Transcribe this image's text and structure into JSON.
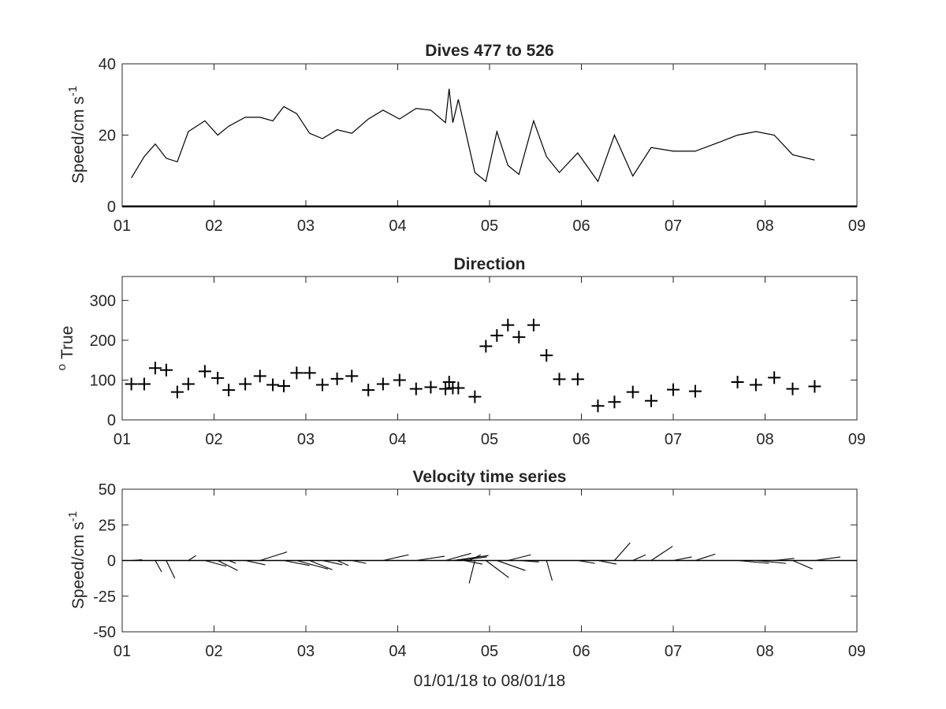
{
  "chart_data": [
    {
      "type": "line",
      "title": "Dives 477 to 526",
      "ylabel": "Speed/cm s",
      "ylabel_superscript": "-1",
      "xlabel": "",
      "xlim": [
        1,
        9
      ],
      "ylim": [
        0,
        40
      ],
      "xtick_labels": [
        "01",
        "02",
        "03",
        "04",
        "05",
        "06",
        "07",
        "08",
        "09"
      ],
      "ytick_labels": [
        "0",
        "20",
        "40"
      ],
      "yticks": [
        0,
        20,
        40
      ],
      "grid": false,
      "series": [
        {
          "x": [
            1.1,
            1.24,
            1.36,
            1.48,
            1.6,
            1.72,
            1.9,
            2.04,
            2.16,
            2.34,
            2.5,
            2.64,
            2.76,
            2.9,
            3.04,
            3.18,
            3.34,
            3.5,
            3.68,
            3.84,
            4.02,
            4.2,
            4.36,
            4.52,
            4.56,
            4.6,
            4.66,
            4.84,
            4.96,
            5.08,
            5.2,
            5.32,
            5.48,
            5.62,
            5.76,
            5.96,
            6.18,
            6.36,
            6.56,
            6.76,
            7.0,
            7.24,
            7.5,
            7.7,
            7.9,
            8.1,
            8.3,
            8.54
          ],
          "y": [
            8,
            14,
            17.5,
            13.5,
            12.5,
            21,
            24,
            20,
            22.5,
            25,
            25,
            24,
            28,
            26,
            20.5,
            19,
            21.5,
            20.5,
            24.5,
            27,
            24.5,
            27.5,
            27,
            23.5,
            33,
            23.5,
            30,
            9.5,
            7,
            21,
            11.5,
            9,
            24,
            14,
            9.5,
            15,
            7,
            20,
            8.5,
            16.5,
            15.5,
            15.5,
            18,
            20,
            21,
            20,
            14.5,
            13
          ]
        }
      ]
    },
    {
      "type": "scatter",
      "title": "Direction",
      "ylabel": "True",
      "ylabel_prefix": "o",
      "xlabel": "",
      "xlim": [
        1,
        9
      ],
      "ylim": [
        0,
        360
      ],
      "xtick_labels": [
        "01",
        "02",
        "03",
        "04",
        "05",
        "06",
        "07",
        "08",
        "09"
      ],
      "ytick_labels": [
        "0",
        "100",
        "200",
        "300"
      ],
      "yticks": [
        0,
        100,
        200,
        300
      ],
      "marker": "+",
      "grid": false,
      "series": [
        {
          "x": [
            1.1,
            1.24,
            1.36,
            1.48,
            1.6,
            1.72,
            1.9,
            2.04,
            2.16,
            2.34,
            2.5,
            2.64,
            2.76,
            2.9,
            3.04,
            3.18,
            3.34,
            3.5,
            3.68,
            3.84,
            4.02,
            4.2,
            4.36,
            4.52,
            4.56,
            4.6,
            4.66,
            4.84,
            4.96,
            5.08,
            5.2,
            5.32,
            5.48,
            5.62,
            5.76,
            5.96,
            6.18,
            6.36,
            6.56,
            6.76,
            7.0,
            7.24,
            7.7,
            7.9,
            8.1,
            8.3,
            8.54
          ],
          "y": [
            90,
            90,
            130,
            125,
            70,
            90,
            122,
            105,
            75,
            90,
            110,
            88,
            85,
            118,
            118,
            88,
            103,
            110,
            75,
            90,
            100,
            78,
            82,
            78,
            95,
            80,
            80,
            58,
            185,
            212,
            238,
            208,
            238,
            162,
            102,
            102,
            35,
            45,
            70,
            48,
            76,
            72,
            95,
            88,
            106,
            78,
            84
          ]
        }
      ]
    },
    {
      "type": "quiver",
      "title": "Velocity time series",
      "ylabel": "Speed/cm s",
      "ylabel_superscript": "-1",
      "xlabel": "01/01/18 to 08/01/18",
      "xlim": [
        1,
        9
      ],
      "ylim": [
        -50,
        50
      ],
      "xtick_labels": [
        "01",
        "02",
        "03",
        "04",
        "05",
        "06",
        "07",
        "08",
        "09"
      ],
      "ytick_labels": [
        "-50",
        "-25",
        "0",
        "25",
        "50"
      ],
      "yticks": [
        -50,
        -25,
        0,
        25,
        50
      ],
      "grid": false,
      "vectors": [
        {
          "x": 1.1,
          "u": 7.5,
          "v": 0.5
        },
        {
          "x": 1.36,
          "u": 4.5,
          "v": -8.0
        },
        {
          "x": 1.48,
          "u": 6.0,
          "v": -12.5
        },
        {
          "x": 1.72,
          "u": 5.5,
          "v": 3.5
        },
        {
          "x": 1.9,
          "u": 15.0,
          "v": -4.0
        },
        {
          "x": 2.04,
          "u": 14.0,
          "v": -7.0
        },
        {
          "x": 2.16,
          "u": 5.0,
          "v": -2.0
        },
        {
          "x": 2.34,
          "u": 14.0,
          "v": -3.0
        },
        {
          "x": 2.5,
          "u": 19.0,
          "v": 6.0
        },
        {
          "x": 2.76,
          "u": 18.0,
          "v": -3.5
        },
        {
          "x": 2.9,
          "u": 22.0,
          "v": -6.0
        },
        {
          "x": 3.04,
          "u": 16.0,
          "v": -6.5
        },
        {
          "x": 3.18,
          "u": 14.0,
          "v": -3.0
        },
        {
          "x": 3.34,
          "u": 8.0,
          "v": -3.5
        },
        {
          "x": 3.5,
          "u": 10.0,
          "v": -2.0
        },
        {
          "x": 3.84,
          "u": 18.0,
          "v": 4.0
        },
        {
          "x": 4.2,
          "u": 20.0,
          "v": 3.0
        },
        {
          "x": 4.52,
          "u": 18.0,
          "v": 5.0
        },
        {
          "x": 4.6,
          "u": 25.0,
          "v": 3.5
        },
        {
          "x": 4.66,
          "u": 20.0,
          "v": 2.5
        },
        {
          "x": 4.72,
          "u": 13.0,
          "v": -2.5
        },
        {
          "x": 4.78,
          "u": 8.0,
          "v": 4.0
        },
        {
          "x": 4.84,
          "u": -4.0,
          "v": -16.0
        },
        {
          "x": 4.96,
          "u": 16.0,
          "v": -12.0
        },
        {
          "x": 5.08,
          "u": 20.0,
          "v": -7.0
        },
        {
          "x": 5.2,
          "u": 16.0,
          "v": 4.0
        },
        {
          "x": 5.32,
          "u": 14.0,
          "v": -1.0
        },
        {
          "x": 5.62,
          "u": 4.0,
          "v": -14.0
        },
        {
          "x": 5.96,
          "u": 12.0,
          "v": -2.0
        },
        {
          "x": 6.18,
          "u": 13.0,
          "v": -2.5
        },
        {
          "x": 6.36,
          "u": 11.0,
          "v": 12.5
        },
        {
          "x": 6.56,
          "u": 9.0,
          "v": 4.0
        },
        {
          "x": 6.76,
          "u": 15.0,
          "v": 10.0
        },
        {
          "x": 7.0,
          "u": 13.0,
          "v": 2.5
        },
        {
          "x": 7.24,
          "u": 14.0,
          "v": 4.5
        },
        {
          "x": 7.7,
          "u": 22.0,
          "v": -2.0
        },
        {
          "x": 7.9,
          "u": 21.0,
          "v": -2.0
        },
        {
          "x": 8.1,
          "u": 14.0,
          "v": 1.5
        },
        {
          "x": 8.3,
          "u": 14.0,
          "v": -6.0
        },
        {
          "x": 8.54,
          "u": 18.0,
          "v": 2.5
        }
      ]
    }
  ],
  "colors": {
    "axis": "#262626",
    "data": "#000000",
    "background": "#ffffff"
  }
}
